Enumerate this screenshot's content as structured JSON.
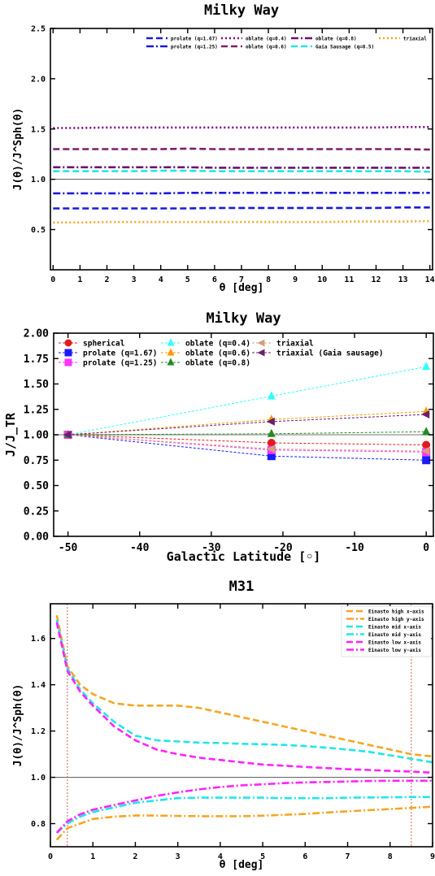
{
  "chart_data": [
    {
      "type": "line",
      "title": "Milky Way",
      "xlabel": "θ [deg]",
      "ylabel": "J(θ)/J^Sph(θ)",
      "xlim": [
        -0.1,
        14.1
      ],
      "ylim": [
        0.1,
        2.5
      ],
      "x_ticks": [
        0,
        1,
        2,
        3,
        4,
        5,
        6,
        7,
        8,
        9,
        10,
        11,
        12,
        13,
        14
      ],
      "y_ticks": [
        0.5,
        1.0,
        1.5,
        2.0,
        2.5
      ],
      "reference_line": 1.0,
      "legend_position": "top",
      "x": [
        0,
        1,
        2,
        3,
        4,
        5,
        6,
        7,
        8,
        9,
        10,
        11,
        12,
        13,
        14
      ],
      "series": [
        {
          "name": "prolate (q=1.67)",
          "color": "#1a1adc",
          "style": "dashed",
          "values": [
            0.71,
            0.71,
            0.71,
            0.71,
            0.71,
            0.71,
            0.715,
            0.715,
            0.715,
            0.715,
            0.715,
            0.715,
            0.715,
            0.72,
            0.72
          ]
        },
        {
          "name": "prolate (q=1.25)",
          "color": "#1a1adc",
          "style": "dashdot",
          "values": [
            0.86,
            0.86,
            0.86,
            0.86,
            0.86,
            0.865,
            0.865,
            0.865,
            0.865,
            0.865,
            0.865,
            0.865,
            0.865,
            0.865,
            0.865
          ]
        },
        {
          "name": "oblate (q=0.4)",
          "color": "#800080",
          "style": "dotted",
          "values": [
            1.51,
            1.51,
            1.515,
            1.515,
            1.515,
            1.515,
            1.515,
            1.515,
            1.515,
            1.515,
            1.515,
            1.515,
            1.515,
            1.52,
            1.52
          ]
        },
        {
          "name": "oblate (q=0.6)",
          "color": "#7a1f6a",
          "style": "dashed",
          "values": [
            1.3,
            1.3,
            1.3,
            1.3,
            1.3,
            1.305,
            1.3,
            1.3,
            1.3,
            1.3,
            1.3,
            1.3,
            1.3,
            1.3,
            1.295
          ]
        },
        {
          "name": "oblate (q=0.8)",
          "color": "#6a1070",
          "style": "dashdot",
          "values": [
            1.12,
            1.12,
            1.12,
            1.12,
            1.12,
            1.12,
            1.115,
            1.115,
            1.115,
            1.115,
            1.115,
            1.115,
            1.115,
            1.115,
            1.115
          ]
        },
        {
          "name": "Gaia Sausage (q=0.5)",
          "color": "#22e6e6",
          "style": "dashed",
          "values": [
            1.08,
            1.08,
            1.08,
            1.08,
            1.085,
            1.085,
            1.08,
            1.08,
            1.08,
            1.08,
            1.08,
            1.08,
            1.08,
            1.08,
            1.075
          ]
        },
        {
          "name": "triaxial",
          "color": "#f5a623",
          "style": "dotted",
          "values": [
            0.57,
            0.57,
            0.575,
            0.575,
            0.575,
            0.575,
            0.575,
            0.575,
            0.575,
            0.575,
            0.575,
            0.58,
            0.58,
            0.58,
            0.585
          ]
        }
      ]
    },
    {
      "type": "line",
      "title": "Milky Way",
      "xlabel": "Galactic Latitude [◦]",
      "ylabel": "J/J_TR",
      "xlim": [
        -52,
        1
      ],
      "ylim": [
        0.0,
        2.0
      ],
      "x_ticks": [
        -50,
        -40,
        -30,
        -20,
        -10,
        0
      ],
      "y_ticks": [
        0.0,
        0.25,
        0.5,
        0.75,
        1.0,
        1.25,
        1.5,
        1.75,
        2.0
      ],
      "y_tick_labels": [
        "0.00",
        "0.25",
        "0.50",
        "0.75",
        "1.00",
        "1.25",
        "1.50",
        "1.75",
        "2.00"
      ],
      "reference_line": 1.0,
      "legend_position": "top",
      "x": [
        -50,
        -21.6,
        0
      ],
      "series": [
        {
          "name": "spherical",
          "color": "#e41a1c",
          "marker": "circle",
          "values": [
            1.0,
            0.92,
            0.9
          ]
        },
        {
          "name": "prolate (q=1.67)",
          "color": "#1a1aff",
          "marker": "square",
          "values": [
            1.0,
            0.79,
            0.75
          ]
        },
        {
          "name": "prolate (q=1.25)",
          "color": "#ff33ff",
          "marker": "square",
          "values": [
            1.0,
            0.85,
            0.83
          ]
        },
        {
          "name": "oblate (q=0.4)",
          "color": "#33ffff",
          "marker": "triangle-up",
          "values": [
            1.0,
            1.38,
            1.67
          ]
        },
        {
          "name": "oblate (q=0.6)",
          "color": "#ff9900",
          "marker": "triangle-up",
          "values": [
            1.0,
            1.15,
            1.23
          ]
        },
        {
          "name": "oblate (q=0.8)",
          "color": "#228b22",
          "marker": "triangle-up",
          "values": [
            1.0,
            1.01,
            1.03
          ]
        },
        {
          "name": "triaxial",
          "color": "#d4a07a",
          "marker": "triangle-left",
          "values": [
            1.0,
            0.86,
            0.84
          ]
        },
        {
          "name": "triaxial (Gaia sausage)",
          "color": "#6b1f6b",
          "marker": "triangle-left",
          "values": [
            1.0,
            1.13,
            1.2
          ]
        }
      ]
    },
    {
      "type": "line",
      "title": "M31",
      "xlabel": "θ [deg]",
      "ylabel": "J(θ)/J^Sph(θ)",
      "xlim": [
        0,
        9
      ],
      "ylim": [
        0.7,
        1.75
      ],
      "x_ticks": [
        0,
        1,
        2,
        3,
        4,
        5,
        6,
        7,
        8,
        9
      ],
      "y_ticks": [
        0.8,
        1.0,
        1.2,
        1.4,
        1.6
      ],
      "reference_line": 1.0,
      "vertical_lines": [
        0.4,
        8.5
      ],
      "legend_position": "top-right",
      "x": [
        0.15,
        0.4,
        0.7,
        1.0,
        1.5,
        2.0,
        2.5,
        3.0,
        3.5,
        4.0,
        4.5,
        5.0,
        5.5,
        6.0,
        6.5,
        7.0,
        7.5,
        8.0,
        8.5,
        9.0
      ],
      "series": [
        {
          "name": "Einasto high x-axis",
          "color": "#f5a623",
          "style": "dashed",
          "values": [
            1.7,
            1.48,
            1.4,
            1.36,
            1.32,
            1.31,
            1.31,
            1.31,
            1.3,
            1.28,
            1.26,
            1.24,
            1.22,
            1.2,
            1.18,
            1.16,
            1.14,
            1.12,
            1.1,
            1.09
          ]
        },
        {
          "name": "Einasto high y-axis",
          "color": "#f5a623",
          "style": "dashdot",
          "values": [
            0.73,
            0.78,
            0.8,
            0.82,
            0.83,
            0.835,
            0.835,
            0.833,
            0.832,
            0.832,
            0.832,
            0.834,
            0.838,
            0.842,
            0.848,
            0.853,
            0.858,
            0.863,
            0.868,
            0.873
          ]
        },
        {
          "name": "Einasto mid x-axis",
          "color": "#22e6e6",
          "style": "dashed",
          "values": [
            1.68,
            1.47,
            1.38,
            1.32,
            1.24,
            1.18,
            1.16,
            1.155,
            1.15,
            1.148,
            1.145,
            1.143,
            1.14,
            1.135,
            1.128,
            1.12,
            1.11,
            1.095,
            1.08,
            1.065
          ]
        },
        {
          "name": "Einasto mid y-axis",
          "color": "#22e6e6",
          "style": "dashdot",
          "values": [
            0.76,
            0.8,
            0.83,
            0.85,
            0.87,
            0.89,
            0.9,
            0.91,
            0.912,
            0.912,
            0.912,
            0.912,
            0.91,
            0.91,
            0.91,
            0.912,
            0.913,
            0.914,
            0.915,
            0.915
          ]
        },
        {
          "name": "Einasto low x-axis",
          "color": "#ff22ff",
          "style": "dashed",
          "values": [
            1.67,
            1.46,
            1.37,
            1.31,
            1.22,
            1.16,
            1.12,
            1.1,
            1.085,
            1.075,
            1.065,
            1.055,
            1.05,
            1.045,
            1.04,
            1.035,
            1.032,
            1.028,
            1.025,
            1.02
          ]
        },
        {
          "name": "Einasto low y-axis",
          "color": "#ff22ff",
          "style": "dashdot",
          "values": [
            0.76,
            0.81,
            0.84,
            0.86,
            0.88,
            0.9,
            0.92,
            0.935,
            0.948,
            0.958,
            0.965,
            0.97,
            0.975,
            0.978,
            0.98,
            0.982,
            0.984,
            0.985,
            0.985,
            0.985
          ]
        }
      ]
    }
  ]
}
